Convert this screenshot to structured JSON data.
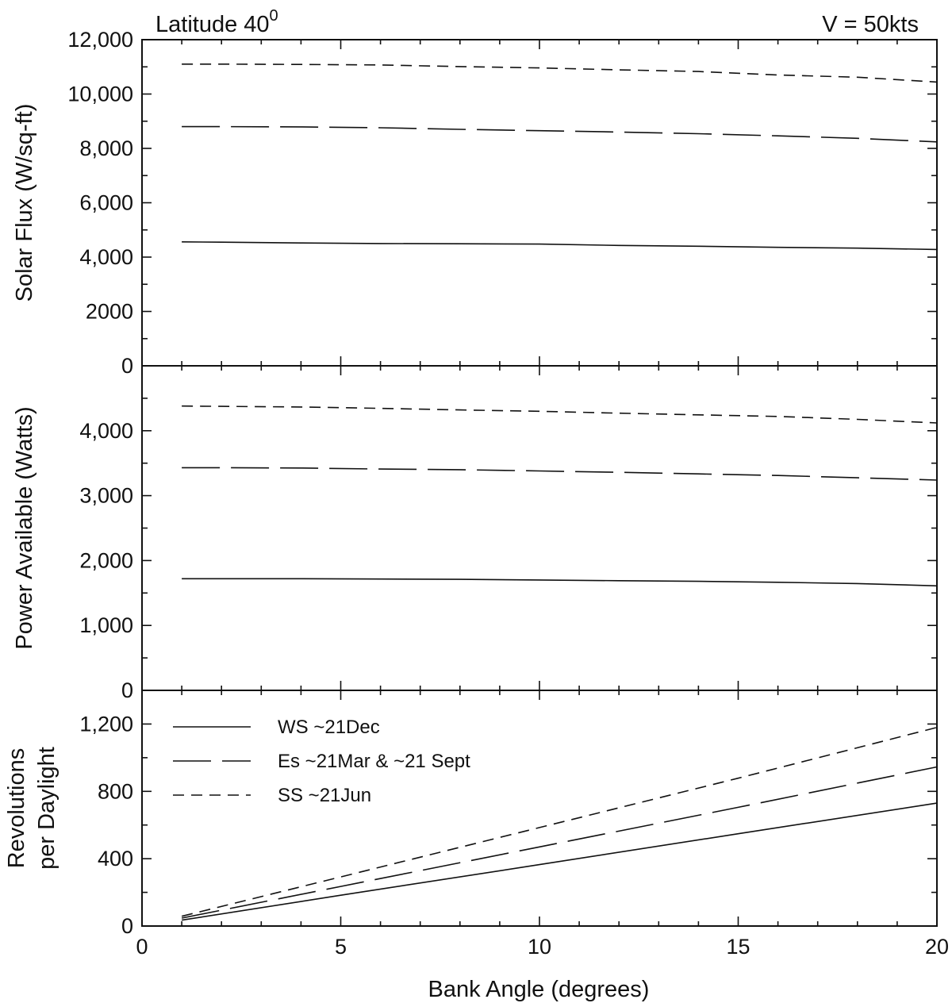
{
  "figure": {
    "annotation_left": "Latitude 40",
    "annotation_left_sup": "0",
    "annotation_right": "V = 50kts",
    "xlabel": "Bank Angle (degrees)"
  },
  "chart_data": [
    {
      "type": "line",
      "ylabel": "Solar Flux (W/sq-ft)",
      "xlim": [
        0,
        20
      ],
      "ylim": [
        0,
        12000
      ],
      "x_ticks": [
        0,
        5,
        10,
        15,
        20
      ],
      "y_ticks": [
        0,
        2000,
        4000,
        6000,
        8000,
        10000,
        12000
      ],
      "y_tick_labels": [
        "0",
        "2000",
        "4,000",
        "6,000",
        "8,000",
        "10,000",
        "12,000"
      ],
      "grid": false,
      "x": [
        1,
        2,
        4,
        6,
        8,
        10,
        12,
        14,
        16,
        18,
        20
      ],
      "series": [
        {
          "style": "solid",
          "values": [
            4560,
            4550,
            4520,
            4500,
            4490,
            4480,
            4430,
            4400,
            4360,
            4330,
            4280
          ]
        },
        {
          "style": "long-dash",
          "values": [
            8800,
            8800,
            8790,
            8760,
            8700,
            8650,
            8600,
            8540,
            8460,
            8370,
            8240
          ]
        },
        {
          "style": "short-dash",
          "values": [
            11100,
            11100,
            11090,
            11070,
            11010,
            10960,
            10890,
            10830,
            10700,
            10620,
            10440
          ]
        }
      ]
    },
    {
      "type": "line",
      "ylabel": "Power Available (Watts)",
      "xlim": [
        0,
        20
      ],
      "ylim": [
        0,
        5000
      ],
      "x_ticks": [
        0,
        5,
        10,
        15,
        20
      ],
      "y_ticks": [
        0,
        1000,
        2000,
        3000,
        4000
      ],
      "y_tick_labels": [
        "0",
        "1,000",
        "2,000",
        "3,000",
        "4,000"
      ],
      "grid": false,
      "x": [
        1,
        2,
        4,
        6,
        8,
        10,
        12,
        14,
        16,
        18,
        20
      ],
      "series": [
        {
          "style": "solid",
          "values": [
            1720,
            1720,
            1720,
            1715,
            1710,
            1700,
            1690,
            1680,
            1665,
            1645,
            1610
          ]
        },
        {
          "style": "long-dash",
          "values": [
            3430,
            3430,
            3425,
            3410,
            3400,
            3380,
            3360,
            3335,
            3310,
            3275,
            3240
          ]
        },
        {
          "style": "short-dash",
          "values": [
            4380,
            4375,
            4365,
            4345,
            4320,
            4300,
            4270,
            4245,
            4220,
            4175,
            4120
          ]
        }
      ]
    },
    {
      "type": "line",
      "ylabel": [
        "Revolutions",
        "per Daylight"
      ],
      "xlim": [
        0,
        20
      ],
      "ylim": [
        0,
        1400
      ],
      "x_ticks": [
        0,
        5,
        10,
        15,
        20
      ],
      "x_tick_labels": [
        "0",
        "5",
        "10",
        "15",
        "20"
      ],
      "y_ticks": [
        0,
        400,
        800,
        1200
      ],
      "y_tick_labels": [
        "0",
        "400",
        "800",
        "1,200"
      ],
      "grid": false,
      "legend_position": "top-left",
      "x": [
        1,
        5,
        10,
        15,
        20
      ],
      "series": [
        {
          "name": "WS ~21Dec",
          "style": "solid",
          "values": [
            35,
            183,
            365,
            548,
            730
          ]
        },
        {
          "name": "Es ~21Mar & ~21 Sept",
          "style": "long-dash",
          "values": [
            47,
            235,
            470,
            705,
            945
          ]
        },
        {
          "name": "SS ~21Jun",
          "style": "short-dash",
          "values": [
            58,
            292,
            585,
            878,
            1180
          ]
        }
      ]
    }
  ]
}
